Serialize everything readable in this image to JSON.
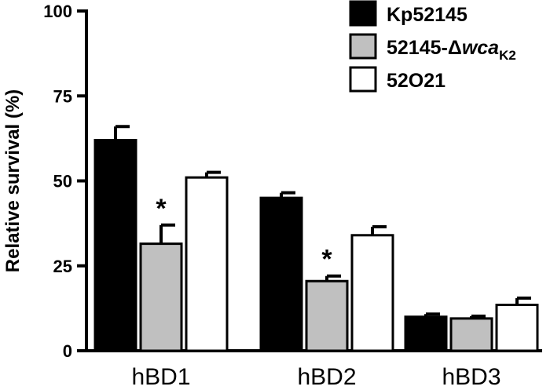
{
  "chart_data": {
    "type": "bar",
    "ylabel": "Relative survival (%)",
    "ylim": [
      0,
      100
    ],
    "yticks": [
      0,
      25,
      50,
      75,
      100
    ],
    "categories": [
      "hBD1",
      "hBD2",
      "hBD3"
    ],
    "series": [
      {
        "name": "Kp52145",
        "values": [
          62,
          45,
          10
        ],
        "errors": [
          4,
          1.5,
          0.8
        ],
        "color": "#000000"
      },
      {
        "name": "52145-Δwca",
        "name_italic": "wca",
        "name_prefix": "52145-Δ",
        "name_subscript": "K2",
        "values": [
          31.5,
          20.5,
          9.5
        ],
        "errors": [
          5.5,
          1.5,
          0.7
        ],
        "color": "#c0c0c0"
      },
      {
        "name": "52O21",
        "values": [
          51,
          34,
          13.5
        ],
        "errors": [
          1.5,
          2.5,
          2
        ],
        "color": "#ffffff"
      }
    ],
    "annotations": [
      {
        "text": "*",
        "category": "hBD1",
        "series": 1
      },
      {
        "text": "*",
        "category": "hBD2",
        "series": 1
      }
    ],
    "legend": "top-right",
    "grid": false
  }
}
